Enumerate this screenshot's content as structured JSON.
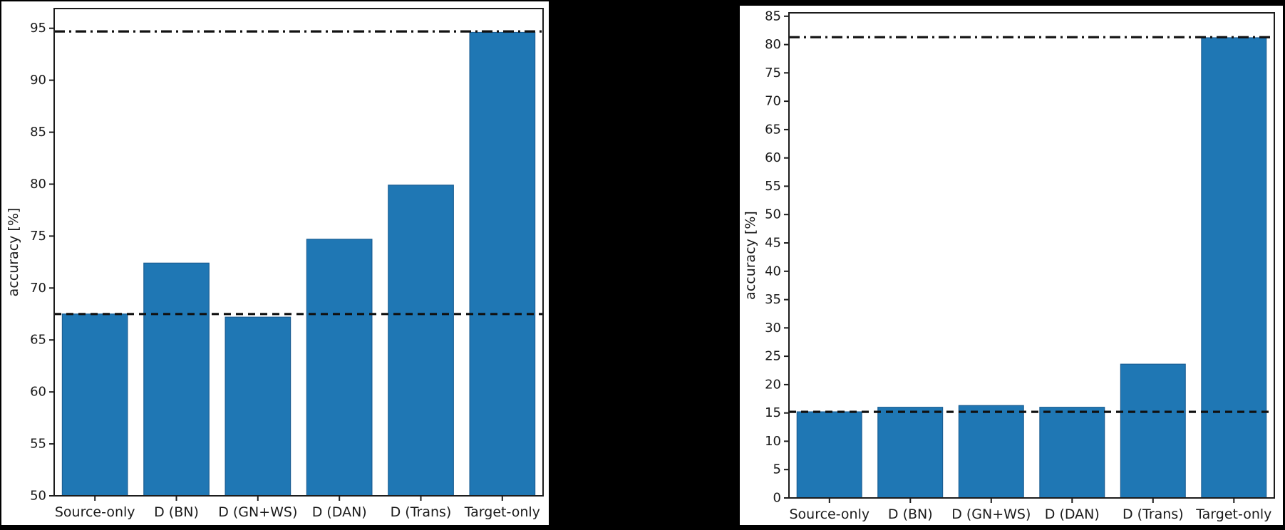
{
  "page": {
    "background_color": "#000000",
    "panel_background_color": "#ffffff"
  },
  "chart_data": [
    {
      "type": "bar",
      "panel": "left",
      "title": "",
      "xlabel": "",
      "ylabel": "accuracy [%]",
      "categories": [
        "Source-only",
        "D (BN)",
        "D (GN+WS)",
        "D (DAN)",
        "D (Trans)",
        "Target-only"
      ],
      "values": [
        67.5,
        72.4,
        67.2,
        74.7,
        79.9,
        94.6
      ],
      "reference_lines": [
        {
          "name": "source-only-baseline",
          "style": "dashed",
          "value": 67.5
        },
        {
          "name": "target-only-oracle",
          "style": "dashdot",
          "value": 94.7
        }
      ],
      "ylim": [
        50,
        96.9
      ],
      "yticks": [
        50,
        55,
        60,
        65,
        70,
        75,
        80,
        85,
        90,
        95
      ],
      "grid": false,
      "legend": "none",
      "bar_color": "#1f77b4",
      "bar_edge_color": "#1a5e94",
      "axis_color": "#1c1c1c",
      "text_color": "#1a1a1a"
    },
    {
      "type": "bar",
      "panel": "right",
      "title": "",
      "xlabel": "",
      "ylabel": "accuracy [%]",
      "categories": [
        "Source-only",
        "D (BN)",
        "D (GN+WS)",
        "D (DAN)",
        "D (Trans)",
        "Target-only"
      ],
      "values": [
        15.2,
        16.0,
        16.3,
        16.0,
        23.6,
        81.2
      ],
      "reference_lines": [
        {
          "name": "source-only-baseline",
          "style": "dashed",
          "value": 15.2
        },
        {
          "name": "target-only-oracle",
          "style": "dashdot",
          "value": 81.3
        }
      ],
      "ylim": [
        0,
        85.6
      ],
      "yticks": [
        0,
        5,
        10,
        15,
        20,
        25,
        30,
        35,
        40,
        45,
        50,
        55,
        60,
        65,
        70,
        75,
        80,
        85
      ],
      "grid": false,
      "legend": "none",
      "bar_color": "#1f77b4",
      "bar_edge_color": "#1a5e94",
      "axis_color": "#1c1c1c",
      "text_color": "#1a1a1a"
    }
  ]
}
